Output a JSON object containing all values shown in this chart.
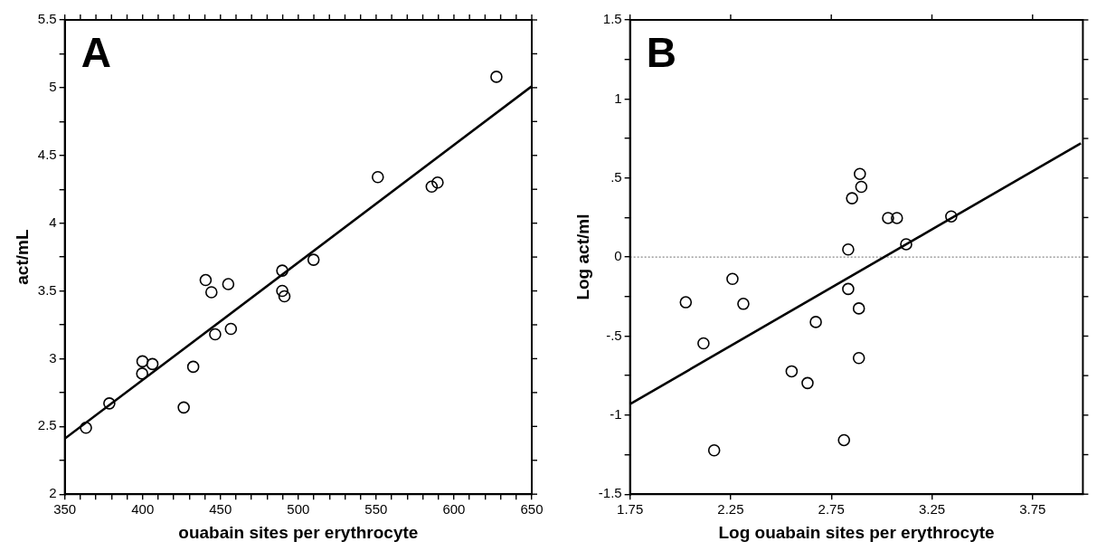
{
  "chart_data": [
    {
      "type": "scatter",
      "xlabel": "ouabain sites per erythrocyte",
      "ylabel": "act/mL",
      "annotations": [
        "A"
      ],
      "marker": "circle",
      "grid": false,
      "legend": false,
      "xlim": [
        350,
        650
      ],
      "ylim": [
        2,
        5.5
      ],
      "xticks": [
        350,
        {
          "value": 360,
          "label": null
        },
        {
          "value": 370,
          "label": null
        },
        {
          "value": 380,
          "label": null
        },
        {
          "value": 390,
          "label": null
        },
        400,
        {
          "value": 410,
          "label": null
        },
        {
          "value": 420,
          "label": null
        },
        {
          "value": 430,
          "label": null
        },
        {
          "value": 440,
          "label": null
        },
        450,
        {
          "value": 460,
          "label": null
        },
        {
          "value": 470,
          "label": null
        },
        {
          "value": 480,
          "label": null
        },
        {
          "value": 490,
          "label": null
        },
        500,
        {
          "value": 510,
          "label": null
        },
        {
          "value": 520,
          "label": null
        },
        {
          "value": 530,
          "label": null
        },
        {
          "value": 540,
          "label": null
        },
        550,
        {
          "value": 560,
          "label": null
        },
        {
          "value": 570,
          "label": null
        },
        {
          "value": 580,
          "label": null
        },
        {
          "value": 590,
          "label": null
        },
        600,
        {
          "value": 610,
          "label": null
        },
        {
          "value": 620,
          "label": null
        },
        {
          "value": 630,
          "label": null
        },
        {
          "value": 640,
          "label": null
        },
        650
      ],
      "yticks": [
        2,
        {
          "value": 2.25,
          "label": null
        },
        2.5,
        {
          "value": 2.75,
          "label": null
        },
        3,
        {
          "value": 3.25,
          "label": null
        },
        3.5,
        {
          "value": 3.75,
          "label": null
        },
        4,
        {
          "value": 4.25,
          "label": null
        },
        4.5,
        {
          "value": 4.75,
          "label": null
        },
        5,
        {
          "value": 5.25,
          "label": null
        },
        5.5
      ],
      "series": [
        {
          "type": "scatter",
          "color": "#000000",
          "x": [
            363.6,
            378.6,
            399.9,
            399.7,
            406.3,
            426.4,
            432.5,
            440.5,
            444.2,
            446.6,
            455,
            456.7,
            489.7,
            489.7,
            491.1,
            509.8,
            551.1,
            585.7,
            589.5,
            627.3
          ],
          "values": [
            2.49,
            2.67,
            2.98,
            2.89,
            2.96,
            2.64,
            2.94,
            3.58,
            3.49,
            3.18,
            3.55,
            3.22,
            3.65,
            3.5,
            3.46,
            3.73,
            4.34,
            4.27,
            4.3,
            5.08
          ]
        },
        {
          "type": "line",
          "color": "#000000",
          "marker": "none",
          "line_style": "solid",
          "x": [
            350,
            650
          ],
          "values": [
            2.41,
            5.01
          ]
        }
      ]
    },
    {
      "type": "scatter",
      "xlabel": "Log ouabain sites per erythrocyte",
      "ylabel": "Log act/ml",
      "annotations": [
        "B"
      ],
      "marker": "circle",
      "grid": false,
      "legend": false,
      "xlim": [
        1.75,
        4
      ],
      "ylim": [
        -1.5,
        1.5
      ],
      "xticks": [
        1.75,
        2.25,
        2.75,
        3.25,
        3.75
      ],
      "yticks": [
        -1.5,
        {
          "value": -1.25,
          "label": null
        },
        -1,
        {
          "value": -0.75,
          "label": null
        },
        {
          "value": -0.5,
          "label": "-.5"
        },
        {
          "value": -0.25,
          "label": null
        },
        0,
        {
          "value": 0.25,
          "label": null
        },
        {
          "value": 0.5,
          "label": ".5"
        },
        {
          "value": 0.75,
          "label": null
        },
        1,
        {
          "value": 1.25,
          "label": null
        },
        1.5
      ],
      "ref_lines": [
        {
          "axis": "y",
          "value": 0,
          "label": null,
          "color": "#888888",
          "line_style": "dotted"
        }
      ],
      "series": [
        {
          "type": "scatter",
          "color": "#000000",
          "x": [
            2.027,
            2.115,
            2.168,
            2.259,
            2.313,
            2.553,
            2.632,
            2.673,
            2.813,
            2.834,
            2.834,
            2.853,
            2.887,
            2.887,
            2.892,
            2.899,
            3.032,
            3.076,
            3.122,
            3.346
          ],
          "values": [
            -0.286,
            -0.546,
            -1.223,
            -0.138,
            -0.296,
            -0.723,
            -0.797,
            -0.411,
            -1.158,
            0.048,
            -0.202,
            0.372,
            -0.325,
            -0.639,
            0.526,
            0.444,
            0.247,
            0.247,
            0.081,
            0.257
          ]
        },
        {
          "type": "line",
          "color": "#000000",
          "marker": "none",
          "line_style": "solid",
          "x": [
            1.75,
            3.99
          ],
          "values": [
            -0.93,
            0.72
          ]
        }
      ]
    }
  ]
}
